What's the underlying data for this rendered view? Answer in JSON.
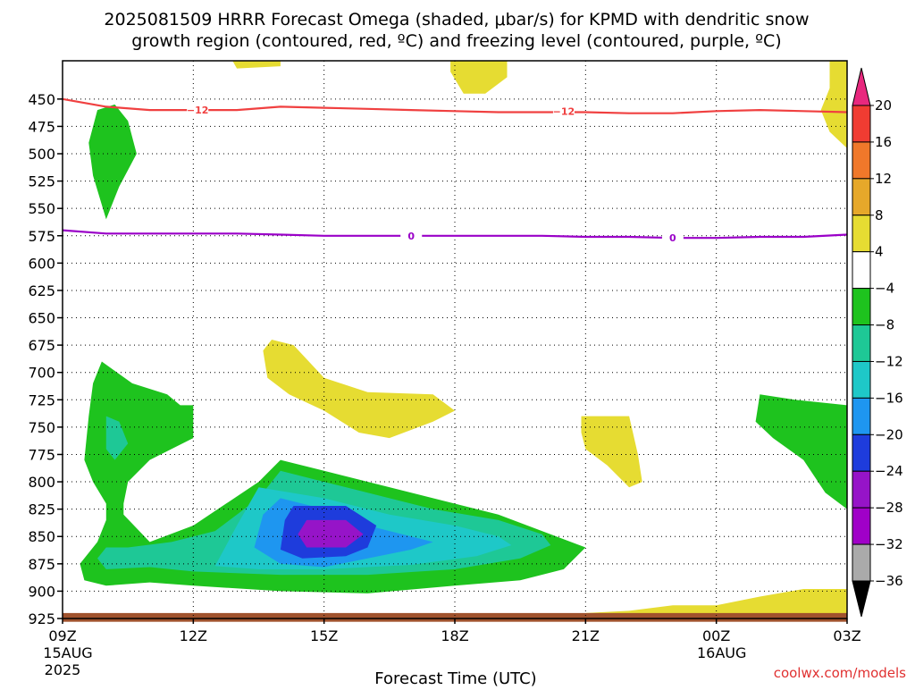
{
  "chart_data": {
    "type": "heatmap",
    "title_line1": "2025081509 HRRR Forecast Omega (shaded, μbar/s) for KPMD with dendritic snow",
    "title_line2": "growth region (contoured, red, ºC) and freezing level (contoured, purple, ºC)",
    "xlabel": "Forecast Time (UTC)",
    "x_ticks": [
      {
        "hour": 0,
        "label": "09Z",
        "sub": "15AUG",
        "sub2": "2025"
      },
      {
        "hour": 3,
        "label": "12Z",
        "sub": "",
        "sub2": ""
      },
      {
        "hour": 6,
        "label": "15Z",
        "sub": "",
        "sub2": ""
      },
      {
        "hour": 9,
        "label": "18Z",
        "sub": "",
        "sub2": ""
      },
      {
        "hour": 12,
        "label": "21Z",
        "sub": "",
        "sub2": ""
      },
      {
        "hour": 15,
        "label": "00Z",
        "sub": "16AUG",
        "sub2": ""
      },
      {
        "hour": 18,
        "label": "03Z",
        "sub": "",
        "sub2": ""
      }
    ],
    "x_range_hours": [
      0,
      18
    ],
    "y_range_hpa": [
      925,
      415
    ],
    "y_ticks": [
      450,
      475,
      500,
      525,
      550,
      575,
      600,
      625,
      650,
      675,
      700,
      725,
      750,
      775,
      800,
      825,
      850,
      875,
      900,
      925
    ],
    "grid": true,
    "colorbar": {
      "labels": [
        "20",
        "16",
        "12",
        "8",
        "4",
        "−4",
        "−8",
        "−12",
        "−16",
        "−20",
        "−24",
        "−28",
        "−32",
        "−36"
      ],
      "bins": [
        {
          "color": "#e8287e"
        },
        {
          "color": "#f03c32"
        },
        {
          "color": "#f0782a"
        },
        {
          "color": "#e6a82a"
        },
        {
          "color": "#e6dc32"
        },
        {
          "color": "#ffffff"
        },
        {
          "color": "#1ec31e"
        },
        {
          "color": "#1ec896"
        },
        {
          "color": "#1ec8c8"
        },
        {
          "color": "#1e96f0"
        },
        {
          "color": "#1e3cdc"
        },
        {
          "color": "#9614c8"
        },
        {
          "color": "#a000c8"
        },
        {
          "color": "#aaaaaa"
        },
        {
          "color": "#000000"
        }
      ]
    },
    "contours": [
      {
        "label": "-12",
        "color": "#f04040",
        "points": [
          [
            0,
            450
          ],
          [
            1,
            457
          ],
          [
            2,
            460
          ],
          [
            3,
            460
          ],
          [
            4,
            460
          ],
          [
            5,
            457
          ],
          [
            6,
            458
          ],
          [
            7,
            459
          ],
          [
            8,
            460
          ],
          [
            9,
            461
          ],
          [
            10,
            462
          ],
          [
            11,
            462
          ],
          [
            12,
            462
          ],
          [
            13,
            463
          ],
          [
            14,
            463
          ],
          [
            15,
            461
          ],
          [
            16,
            460
          ],
          [
            17,
            461
          ],
          [
            18,
            462
          ]
        ]
      },
      {
        "label": "0",
        "color": "#9a00c8",
        "points": [
          [
            0,
            570
          ],
          [
            1,
            573
          ],
          [
            2,
            573
          ],
          [
            3,
            573
          ],
          [
            4,
            573
          ],
          [
            5,
            574
          ],
          [
            6,
            575
          ],
          [
            7,
            575
          ],
          [
            8,
            575
          ],
          [
            9,
            575
          ],
          [
            10,
            575
          ],
          [
            11,
            575
          ],
          [
            12,
            576
          ],
          [
            13,
            576
          ],
          [
            14,
            577
          ],
          [
            15,
            577
          ],
          [
            16,
            576
          ],
          [
            17,
            576
          ],
          [
            18,
            574
          ]
        ]
      }
    ],
    "contour_labels": [
      {
        "text": "−12",
        "hour": 3.1,
        "hpa": 460,
        "color": "#f04040"
      },
      {
        "text": "−12",
        "hour": 11.5,
        "hpa": 461,
        "color": "#f04040"
      },
      {
        "text": "0",
        "hour": 8.0,
        "hpa": 575,
        "color": "#9a00c8"
      },
      {
        "text": "0",
        "hour": 14.0,
        "hpa": 577,
        "color": "#9a00c8"
      }
    ],
    "regions": [
      {
        "value": 6,
        "color": "#e6dc32",
        "points": [
          [
            3.9,
            415
          ],
          [
            5.0,
            415
          ],
          [
            5.0,
            420
          ],
          [
            4.0,
            422
          ]
        ]
      },
      {
        "value": 6,
        "color": "#e6dc32",
        "points": [
          [
            8.9,
            415
          ],
          [
            10.2,
            415
          ],
          [
            10.2,
            430
          ],
          [
            9.7,
            445
          ],
          [
            9.2,
            445
          ],
          [
            8.9,
            425
          ]
        ]
      },
      {
        "value": 6,
        "color": "#e6dc32",
        "points": [
          [
            17.6,
            415
          ],
          [
            18.0,
            415
          ],
          [
            18.0,
            495
          ],
          [
            17.6,
            480
          ],
          [
            17.4,
            460
          ],
          [
            17.6,
            440
          ]
        ]
      },
      {
        "value": -6,
        "color": "#1ec31e",
        "points": [
          [
            1.2,
            455
          ],
          [
            1.5,
            470
          ],
          [
            1.7,
            500
          ],
          [
            1.3,
            530
          ],
          [
            1.0,
            560
          ],
          [
            0.7,
            520
          ],
          [
            0.6,
            490
          ],
          [
            0.8,
            460
          ]
        ]
      },
      {
        "value": 6,
        "color": "#e6dc32",
        "points": [
          [
            4.8,
            670
          ],
          [
            5.3,
            675
          ],
          [
            6.0,
            705
          ],
          [
            7.0,
            718
          ],
          [
            8.5,
            720
          ],
          [
            9.0,
            735
          ],
          [
            8.5,
            745
          ],
          [
            7.5,
            760
          ],
          [
            6.8,
            755
          ],
          [
            6.0,
            735
          ],
          [
            5.2,
            720
          ],
          [
            4.7,
            705
          ],
          [
            4.6,
            680
          ]
        ]
      },
      {
        "value": 6,
        "color": "#e6dc32",
        "points": [
          [
            11.9,
            740
          ],
          [
            13.0,
            740
          ],
          [
            13.2,
            775
          ],
          [
            13.3,
            800
          ],
          [
            13.0,
            805
          ],
          [
            12.5,
            785
          ],
          [
            12.0,
            770
          ],
          [
            11.9,
            755
          ]
        ]
      },
      {
        "value": -6,
        "color": "#1ec31e",
        "points": [
          [
            16.0,
            720
          ],
          [
            16.8,
            725
          ],
          [
            18.0,
            730
          ],
          [
            18.0,
            825
          ],
          [
            17.5,
            810
          ],
          [
            17.0,
            780
          ],
          [
            16.3,
            760
          ],
          [
            15.9,
            745
          ]
        ]
      },
      {
        "value": 6,
        "color": "#e6dc32",
        "points": [
          [
            12.0,
            920
          ],
          [
            13.0,
            918
          ],
          [
            14.0,
            913
          ],
          [
            15.0,
            913
          ],
          [
            16.0,
            905
          ],
          [
            17.0,
            898
          ],
          [
            18.0,
            898
          ],
          [
            18.0,
            925
          ],
          [
            12.0,
            925
          ]
        ]
      },
      {
        "value": -6,
        "color": "#1ec31e",
        "points": [
          [
            0.9,
            690
          ],
          [
            1.6,
            710
          ],
          [
            2.4,
            720
          ],
          [
            2.7,
            730
          ],
          [
            3.0,
            730
          ],
          [
            3.0,
            760
          ],
          [
            2.5,
            770
          ],
          [
            2.0,
            780
          ],
          [
            1.5,
            800
          ],
          [
            1.4,
            820
          ],
          [
            1.4,
            830
          ],
          [
            2.0,
            855
          ],
          [
            3.0,
            840
          ],
          [
            4.5,
            800
          ],
          [
            5.0,
            780
          ],
          [
            6.0,
            790
          ],
          [
            8.0,
            810
          ],
          [
            10.0,
            830
          ],
          [
            12.0,
            860
          ],
          [
            11.5,
            880
          ],
          [
            10.5,
            890
          ],
          [
            9.0,
            895
          ],
          [
            7.0,
            902
          ],
          [
            5.0,
            900
          ],
          [
            3.0,
            895
          ],
          [
            2.0,
            892
          ],
          [
            1.0,
            895
          ],
          [
            0.5,
            890
          ],
          [
            0.4,
            875
          ],
          [
            0.8,
            855
          ],
          [
            1.0,
            835
          ],
          [
            1.0,
            820
          ],
          [
            0.7,
            800
          ],
          [
            0.5,
            780
          ],
          [
            0.6,
            740
          ],
          [
            0.7,
            710
          ]
        ]
      },
      {
        "value": -10,
        "color": "#1ec896",
        "points": [
          [
            1.0,
            740
          ],
          [
            1.3,
            745
          ],
          [
            1.5,
            765
          ],
          [
            1.2,
            780
          ],
          [
            1.0,
            770
          ]
        ]
      },
      {
        "value": -10,
        "color": "#1ec896",
        "points": [
          [
            5.0,
            790
          ],
          [
            6.0,
            800
          ],
          [
            7.0,
            810
          ],
          [
            8.5,
            825
          ],
          [
            10.0,
            835
          ],
          [
            11.0,
            848
          ],
          [
            11.2,
            858
          ],
          [
            10.5,
            870
          ],
          [
            9.0,
            880
          ],
          [
            7.0,
            885
          ],
          [
            5.0,
            885
          ],
          [
            3.0,
            882
          ],
          [
            2.0,
            878
          ],
          [
            1.0,
            880
          ],
          [
            0.8,
            870
          ],
          [
            1.0,
            860
          ],
          [
            1.5,
            860
          ],
          [
            2.5,
            855
          ],
          [
            3.5,
            845
          ],
          [
            4.5,
            815
          ]
        ]
      },
      {
        "value": -14,
        "color": "#1ec8c8",
        "points": [
          [
            4.5,
            805
          ],
          [
            6.0,
            815
          ],
          [
            7.5,
            830
          ],
          [
            9.0,
            840
          ],
          [
            10.0,
            850
          ],
          [
            10.3,
            858
          ],
          [
            9.5,
            868
          ],
          [
            8.0,
            876
          ],
          [
            6.0,
            880
          ],
          [
            4.5,
            880
          ],
          [
            3.5,
            877
          ],
          [
            4.0,
            840
          ]
        ]
      },
      {
        "value": -18,
        "color": "#1e96f0",
        "points": [
          [
            5.0,
            815
          ],
          [
            6.0,
            825
          ],
          [
            7.0,
            840
          ],
          [
            8.0,
            850
          ],
          [
            8.5,
            855
          ],
          [
            8.0,
            862
          ],
          [
            7.0,
            870
          ],
          [
            6.0,
            878
          ],
          [
            5.0,
            875
          ],
          [
            4.4,
            860
          ],
          [
            4.6,
            830
          ]
        ]
      },
      {
        "value": -22,
        "color": "#1e3cdc",
        "points": [
          [
            5.3,
            822
          ],
          [
            6.5,
            822
          ],
          [
            7.2,
            840
          ],
          [
            7.0,
            860
          ],
          [
            6.5,
            868
          ],
          [
            5.5,
            870
          ],
          [
            5.0,
            862
          ],
          [
            5.1,
            835
          ]
        ]
      },
      {
        "value": -26,
        "color": "#9614c8",
        "points": [
          [
            5.6,
            835
          ],
          [
            6.5,
            835
          ],
          [
            6.9,
            848
          ],
          [
            6.5,
            860
          ],
          [
            5.6,
            860
          ],
          [
            5.4,
            848
          ]
        ]
      }
    ],
    "surface_band": {
      "color": "#a0522d",
      "hpa_top": 920,
      "hpa_bottom": 928
    }
  },
  "credit": "coolwx.com/models"
}
